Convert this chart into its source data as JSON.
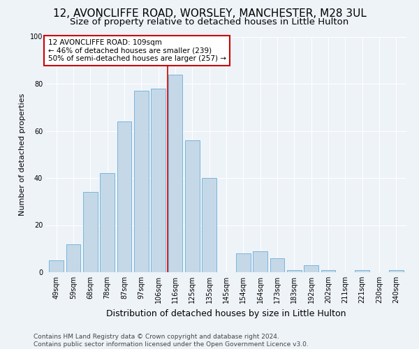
{
  "title": "12, AVONCLIFFE ROAD, WORSLEY, MANCHESTER, M28 3UL",
  "subtitle": "Size of property relative to detached houses in Little Hulton",
  "xlabel": "Distribution of detached houses by size in Little Hulton",
  "ylabel": "Number of detached properties",
  "categories": [
    "49sqm",
    "59sqm",
    "68sqm",
    "78sqm",
    "87sqm",
    "97sqm",
    "106sqm",
    "116sqm",
    "125sqm",
    "135sqm",
    "145sqm",
    "154sqm",
    "164sqm",
    "173sqm",
    "183sqm",
    "192sqm",
    "202sqm",
    "211sqm",
    "221sqm",
    "230sqm",
    "240sqm"
  ],
  "values": [
    5,
    12,
    34,
    42,
    64,
    77,
    78,
    84,
    56,
    40,
    0,
    8,
    9,
    6,
    1,
    3,
    1,
    0,
    1,
    0,
    1
  ],
  "bar_color": "#c5d8e8",
  "bar_edge_color": "#6baed6",
  "vline_x": 6.55,
  "vline_color": "#cc0000",
  "annotation_text": "12 AVONCLIFFE ROAD: 109sqm\n← 46% of detached houses are smaller (239)\n50% of semi-detached houses are larger (257) →",
  "annotation_box_color": "#cc0000",
  "background_color": "#eef3f8",
  "grid_color": "#ffffff",
  "footer_line1": "Contains HM Land Registry data © Crown copyright and database right 2024.",
  "footer_line2": "Contains public sector information licensed under the Open Government Licence v3.0.",
  "ylim": [
    0,
    100
  ],
  "title_fontsize": 11,
  "subtitle_fontsize": 9.5,
  "xlabel_fontsize": 9,
  "ylabel_fontsize": 8,
  "tick_fontsize": 7,
  "annotation_fontsize": 7.5,
  "footer_fontsize": 6.5
}
